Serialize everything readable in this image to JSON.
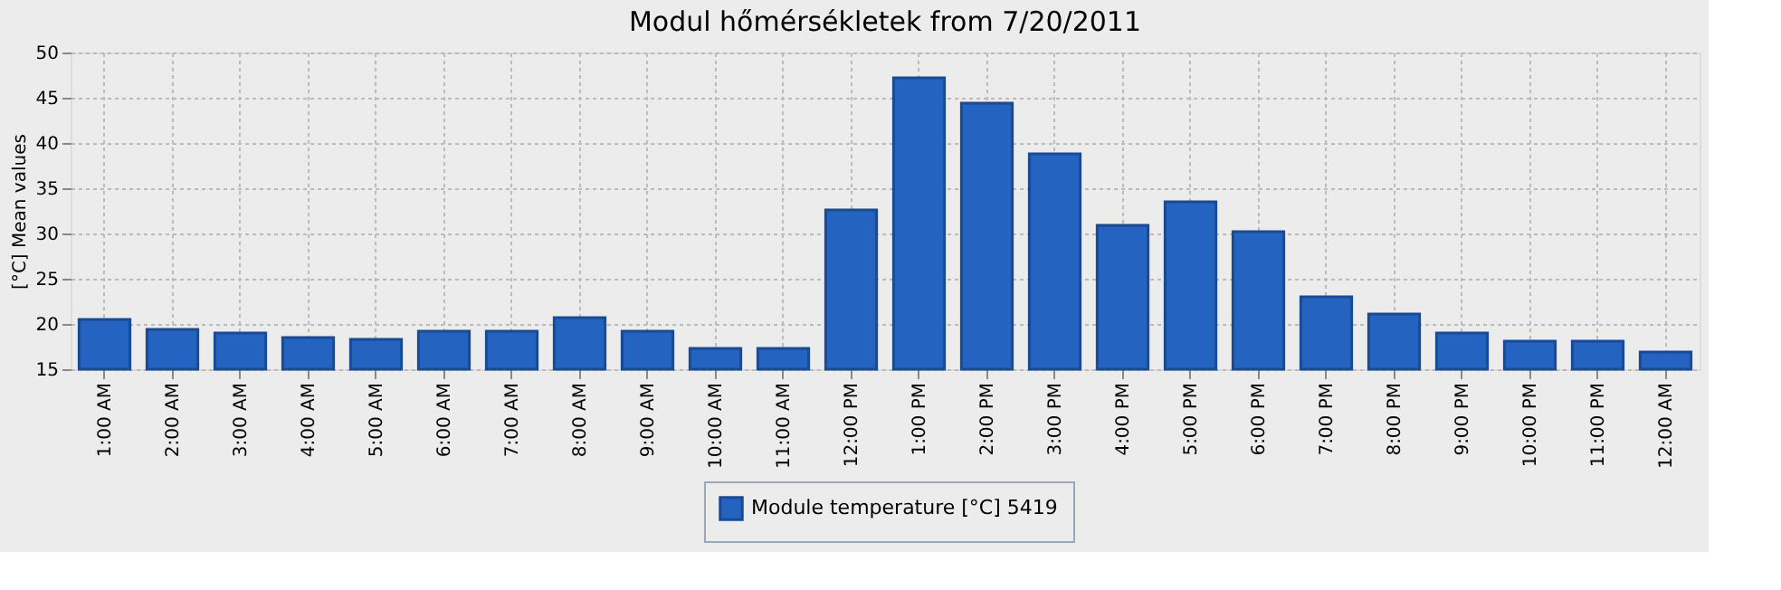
{
  "chart_data": {
    "type": "bar",
    "title": "Modul hőmérsékletek from 7/20/2011",
    "ylabel": "[°C] Mean values",
    "categories": [
      "1:00 AM",
      "2:00 AM",
      "3:00 AM",
      "4:00 AM",
      "5:00 AM",
      "6:00 AM",
      "7:00 AM",
      "8:00 AM",
      "9:00 AM",
      "10:00 AM",
      "11:00 AM",
      "12:00 PM",
      "1:00 PM",
      "2:00 PM",
      "3:00 PM",
      "4:00 PM",
      "5:00 PM",
      "6:00 PM",
      "7:00 PM",
      "8:00 PM",
      "9:00 PM",
      "10:00 PM",
      "11:00 PM",
      "12:00 AM"
    ],
    "series": [
      {
        "name": "Module temperature [°C] 5419",
        "color": "#2463c0",
        "values": [
          20.5,
          19.4,
          19.0,
          18.5,
          18.3,
          19.2,
          19.2,
          20.7,
          19.2,
          17.3,
          17.3,
          32.6,
          47.2,
          44.4,
          38.8,
          30.9,
          33.5,
          30.2,
          23.0,
          21.1,
          19.0,
          18.1,
          18.1,
          16.9
        ]
      }
    ],
    "ylim": [
      15,
      50
    ],
    "yticks": [
      15,
      20,
      25,
      30,
      35,
      40,
      45,
      50
    ],
    "grid": true,
    "legend": "bottom"
  }
}
